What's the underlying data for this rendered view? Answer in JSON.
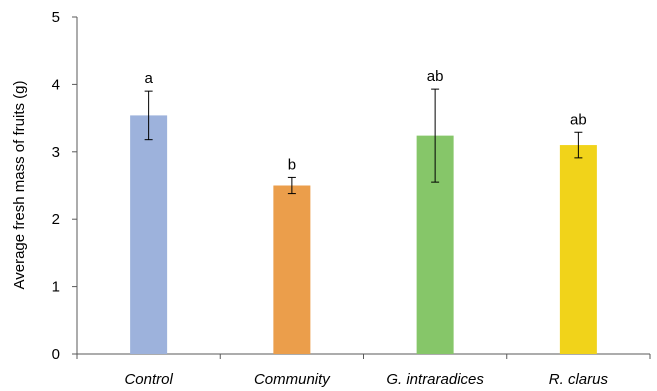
{
  "chart_data": {
    "type": "bar",
    "title": "",
    "xlabel": "",
    "ylabel": "Average fresh mass of fruits (g)",
    "ylim": [
      0,
      5
    ],
    "yticks": [
      0,
      1,
      2,
      3,
      4,
      5
    ],
    "grid": false,
    "categories": [
      "Control",
      "Community",
      "G. intraradices",
      "R. clarus"
    ],
    "values": [
      3.54,
      2.5,
      3.24,
      3.1
    ],
    "errors": [
      0.36,
      0.12,
      0.69,
      0.19
    ],
    "significance": [
      "a",
      "b",
      "ab",
      "ab"
    ],
    "colors": [
      "#9db2dc",
      "#eb9e4b",
      "#86c669",
      "#f1d31a"
    ]
  }
}
